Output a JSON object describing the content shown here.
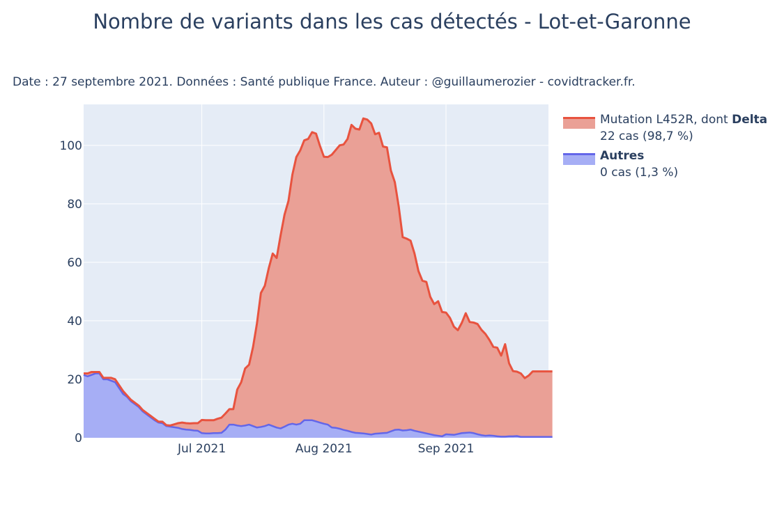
{
  "title": "Nombre de variants dans les cas détectés - Lot-et-Garonne",
  "subtitle": "Date : 27 septembre 2021. Données : Santé publique France. Auteur : @guillaumerozier - covidtracker.fr.",
  "colors": {
    "plot_bg": "#e5ecf6",
    "delta_line": "#e8533f",
    "delta_fill": "#eaa096",
    "autres_line": "#6366e9",
    "autres_fill": "#a6aef5",
    "grid": "#ffffff",
    "text": "#2a3f5f"
  },
  "legend": {
    "items": [
      {
        "name_prefix": "Mutation L452R, dont ",
        "name_bold": "Delta",
        "detail": "22 cas (98,7 %)"
      },
      {
        "name_prefix": "",
        "name_bold": "Autres",
        "detail": "0 cas (1,3 %)"
      }
    ]
  },
  "chart_data": {
    "type": "area",
    "stacked": true,
    "x_start": "2021-06-01",
    "x_end": "2021-09-27",
    "x_unit": "day",
    "xlim": [
      "2021-06-01",
      "2021-09-27"
    ],
    "ylim": [
      0,
      114
    ],
    "xticks": [
      {
        "date": "2021-07-01",
        "label": "Jul 2021"
      },
      {
        "date": "2021-08-01",
        "label": "Aug 2021"
      },
      {
        "date": "2021-09-01",
        "label": "Sep 2021"
      }
    ],
    "yticks": [
      0,
      20,
      40,
      60,
      80,
      100
    ],
    "grid": true,
    "legend_position": "right",
    "series": [
      {
        "name": "Autres",
        "values": [
          21.5,
          21,
          21.5,
          22,
          22,
          20,
          20,
          19.5,
          19,
          17,
          15,
          14,
          12.5,
          11.5,
          10.5,
          9,
          8,
          7,
          6,
          5.2,
          5,
          4,
          3.8,
          3.6,
          3.4,
          3,
          2.8,
          2.7,
          2.5,
          2.4,
          1.6,
          1.5,
          1.5,
          1.6,
          1.6,
          1.7,
          2.8,
          4.5,
          4.5,
          4.2,
          4,
          4.2,
          4.5,
          4,
          3.5,
          3.7,
          4,
          4.5,
          4,
          3.5,
          3.2,
          3.8,
          4.5,
          4.8,
          4.5,
          4.8,
          6,
          6,
          6,
          5.6,
          5.2,
          4.8,
          4.5,
          3.5,
          3.4,
          3.1,
          2.7,
          2.4,
          2,
          1.7,
          1.6,
          1.5,
          1.3,
          1.1,
          1.4,
          1.5,
          1.6,
          1.7,
          2.2,
          2.7,
          2.8,
          2.5,
          2.6,
          2.8,
          2.4,
          2.1,
          1.8,
          1.5,
          1.2,
          0.9,
          0.7,
          0.5,
          1.2,
          1.1,
          1,
          1.3,
          1.6,
          1.7,
          1.8,
          1.6,
          1.2,
          0.9,
          0.7,
          0.8,
          0.7,
          0.5,
          0.4,
          0.4,
          0.5,
          0.5,
          0.6,
          0.3,
          0.3,
          0.3,
          0.3,
          0.3,
          0.3,
          0.3,
          0.3,
          0.3
        ]
      },
      {
        "name": "Mutation L452R, dont Delta",
        "values": [
          0.5,
          1,
          1,
          0.5,
          0.5,
          0.5,
          0.5,
          1,
          1,
          1,
          1,
          0.5,
          0.5,
          0.5,
          0.5,
          0.5,
          0.5,
          0.5,
          0.5,
          0.3,
          0.5,
          0.3,
          0.4,
          1,
          1.6,
          2.2,
          2.2,
          2.2,
          2.5,
          2.6,
          4.5,
          4.5,
          4.5,
          4.4,
          4.9,
          5.2,
          5.5,
          5.3,
          5.3,
          12.3,
          15,
          19.5,
          20.5,
          27,
          35.6,
          45.8,
          48,
          53.5,
          59,
          58,
          66,
          72.5,
          76.5,
          85.2,
          91.5,
          93.5,
          95.7,
          96.2,
          98.5,
          98.4,
          94.6,
          91.3,
          91.5,
          93.3,
          95,
          96.9,
          97.6,
          99.8,
          105,
          104,
          103.8,
          107.7,
          107.5,
          106.4,
          102.4,
          102.8,
          98,
          97.6,
          89.2,
          84.7,
          76.2,
          66.1,
          65.5,
          64.6,
          60.6,
          54.9,
          51.9,
          51.8,
          47,
          44.8,
          46,
          42.5,
          41.6,
          39.9,
          37,
          35.5,
          37.7,
          40.9,
          37.8,
          37.8,
          37.7,
          36,
          34.8,
          32.7,
          30.4,
          30.3,
          27.7,
          31.6,
          25,
          22.3,
          22,
          21.7,
          20.1,
          21,
          22.4,
          22.4,
          22.4,
          22.4,
          22.4,
          22.4,
          22.4,
          22.4
        ]
      }
    ]
  }
}
